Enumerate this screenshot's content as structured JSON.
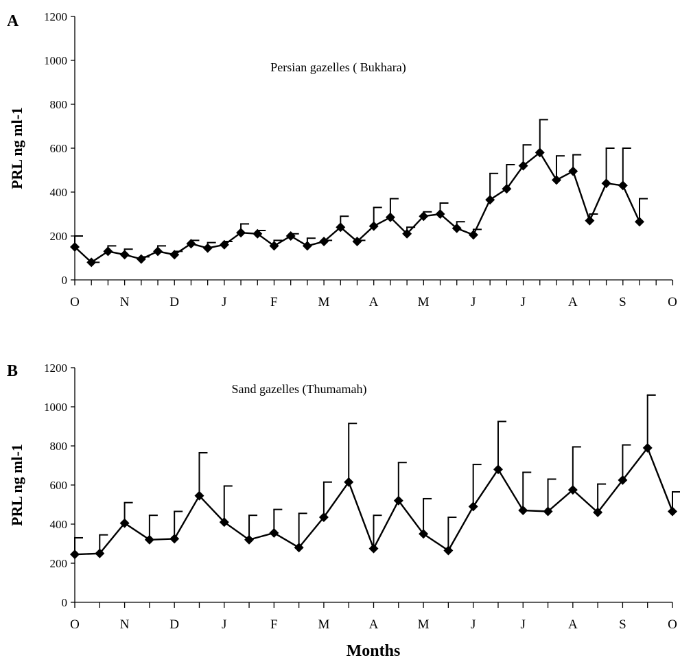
{
  "chart_data": [
    {
      "type": "line",
      "panel_label": "A",
      "title": "Persian gazelles ( Bukhara)",
      "xlabel": "",
      "ylabel": "PRL ng ml-1",
      "ylim": [
        0,
        1200
      ],
      "yticks": [
        0,
        200,
        400,
        600,
        800,
        1000,
        1200
      ],
      "month_labels": [
        "O",
        "N",
        "D",
        "J",
        "F",
        "M",
        "A",
        "M",
        "J",
        "J",
        "A",
        "S",
        "O"
      ],
      "grid": false,
      "series": [
        {
          "values": [
            150,
            80,
            130,
            115,
            95,
            130,
            115,
            165,
            145,
            160,
            215,
            210,
            155,
            200,
            155,
            175,
            240,
            175,
            245,
            285,
            210,
            290,
            300,
            235,
            205,
            365,
            415,
            520,
            580,
            455,
            495,
            270,
            440,
            430,
            265
          ],
          "error_upper": [
            200,
            80,
            155,
            140,
            105,
            155,
            130,
            180,
            170,
            175,
            255,
            225,
            180,
            210,
            190,
            180,
            290,
            180,
            330,
            370,
            240,
            310,
            350,
            265,
            230,
            485,
            525,
            615,
            730,
            565,
            570,
            300,
            600,
            600,
            370
          ]
        }
      ]
    },
    {
      "type": "line",
      "panel_label": "B",
      "title": "Sand gazelles  (Thumamah)",
      "xlabel": "Months",
      "ylabel": "PRL ng ml-1",
      "ylim": [
        0,
        1200
      ],
      "yticks": [
        0,
        200,
        400,
        600,
        800,
        1000,
        1200
      ],
      "month_labels": [
        "O",
        "N",
        "D",
        "J",
        "F",
        "M",
        "A",
        "M",
        "J",
        "J",
        "A",
        "S",
        "O"
      ],
      "grid": false,
      "series": [
        {
          "values": [
            245,
            250,
            405,
            320,
            325,
            545,
            410,
            320,
            355,
            280,
            435,
            615,
            275,
            520,
            350,
            265,
            490,
            680,
            470,
            465,
            575,
            460,
            625,
            790,
            465
          ],
          "error_upper": [
            330,
            345,
            510,
            445,
            465,
            765,
            595,
            445,
            475,
            455,
            615,
            915,
            445,
            715,
            530,
            435,
            705,
            925,
            665,
            630,
            795,
            605,
            805,
            1060,
            565
          ]
        }
      ]
    }
  ]
}
